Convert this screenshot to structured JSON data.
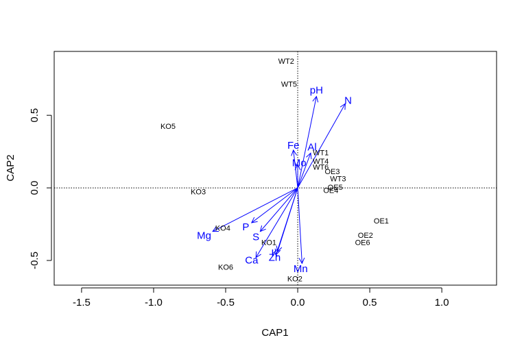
{
  "chart_data": {
    "type": "scatter",
    "title": "",
    "xlabel": "CAP1",
    "ylabel": "CAP2",
    "xlim": [
      -1.69,
      1.38
    ],
    "ylim": [
      -0.67,
      0.94
    ],
    "xticks": [
      -1.5,
      -1.0,
      -0.5,
      0.0,
      0.5,
      1.0
    ],
    "xtick_labels": [
      "-1.5",
      "-1.0",
      "-0.5",
      "0.0",
      "0.5",
      "1.0"
    ],
    "yticks": [
      -0.5,
      0.0,
      0.5
    ],
    "ytick_labels": [
      "-0.5",
      "0.0",
      "0.5"
    ],
    "grid": false,
    "reference_lines": {
      "x": 0,
      "y": 0,
      "style": "dotted"
    },
    "arrow_color": "#0000ff",
    "sites": [
      {
        "label": "WT2",
        "x": -0.08,
        "y": 0.87
      },
      {
        "label": "WT5",
        "x": -0.06,
        "y": 0.71
      },
      {
        "label": "KO5",
        "x": -0.9,
        "y": 0.42
      },
      {
        "label": "WT1",
        "x": 0.16,
        "y": 0.24
      },
      {
        "label": "WT4",
        "x": 0.16,
        "y": 0.18
      },
      {
        "label": "WT6",
        "x": 0.16,
        "y": 0.14
      },
      {
        "label": "OE3",
        "x": 0.24,
        "y": 0.11
      },
      {
        "label": "WT3",
        "x": 0.28,
        "y": 0.06
      },
      {
        "label": "OE5",
        "x": 0.26,
        "y": 0.0
      },
      {
        "label": "OE4",
        "x": 0.23,
        "y": -0.02
      },
      {
        "label": "KO3",
        "x": -0.69,
        "y": -0.03
      },
      {
        "label": "OE1",
        "x": 0.58,
        "y": -0.23
      },
      {
        "label": "KO4",
        "x": -0.52,
        "y": -0.28
      },
      {
        "label": "OE2",
        "x": 0.47,
        "y": -0.33
      },
      {
        "label": "OE6",
        "x": 0.45,
        "y": -0.38
      },
      {
        "label": "KO1",
        "x": -0.2,
        "y": -0.38
      },
      {
        "label": "KO6",
        "x": -0.5,
        "y": -0.55
      },
      {
        "label": "KO2",
        "x": -0.02,
        "y": -0.63
      }
    ],
    "vectors": [
      {
        "label": "pH",
        "x": 0.13,
        "y": 0.63,
        "lx": 0.13,
        "ly": 0.67
      },
      {
        "label": "N",
        "x": 0.33,
        "y": 0.58,
        "lx": 0.35,
        "ly": 0.6
      },
      {
        "label": "Fe",
        "x": -0.03,
        "y": 0.26,
        "lx": -0.03,
        "ly": 0.29
      },
      {
        "label": "Al",
        "x": 0.09,
        "y": 0.24,
        "lx": 0.1,
        "ly": 0.28
      },
      {
        "label": "Mo",
        "x": 0.0,
        "y": 0.16,
        "lx": 0.01,
        "ly": 0.17
      },
      {
        "label": "Mg",
        "x": -0.59,
        "y": -0.3,
        "lx": -0.65,
        "ly": -0.33
      },
      {
        "label": "P",
        "x": -0.32,
        "y": -0.24,
        "lx": -0.36,
        "ly": -0.27
      },
      {
        "label": "S",
        "x": -0.26,
        "y": -0.3,
        "lx": -0.29,
        "ly": -0.34
      },
      {
        "label": "K",
        "x": -0.14,
        "y": -0.44,
        "lx": -0.16,
        "ly": -0.45
      },
      {
        "label": "Ca",
        "x": -0.29,
        "y": -0.48,
        "lx": -0.32,
        "ly": -0.5
      },
      {
        "label": "Zn",
        "x": -0.15,
        "y": -0.46,
        "lx": -0.16,
        "ly": -0.48
      },
      {
        "label": "Mn",
        "x": 0.03,
        "y": -0.52,
        "lx": 0.02,
        "ly": -0.56
      }
    ]
  }
}
